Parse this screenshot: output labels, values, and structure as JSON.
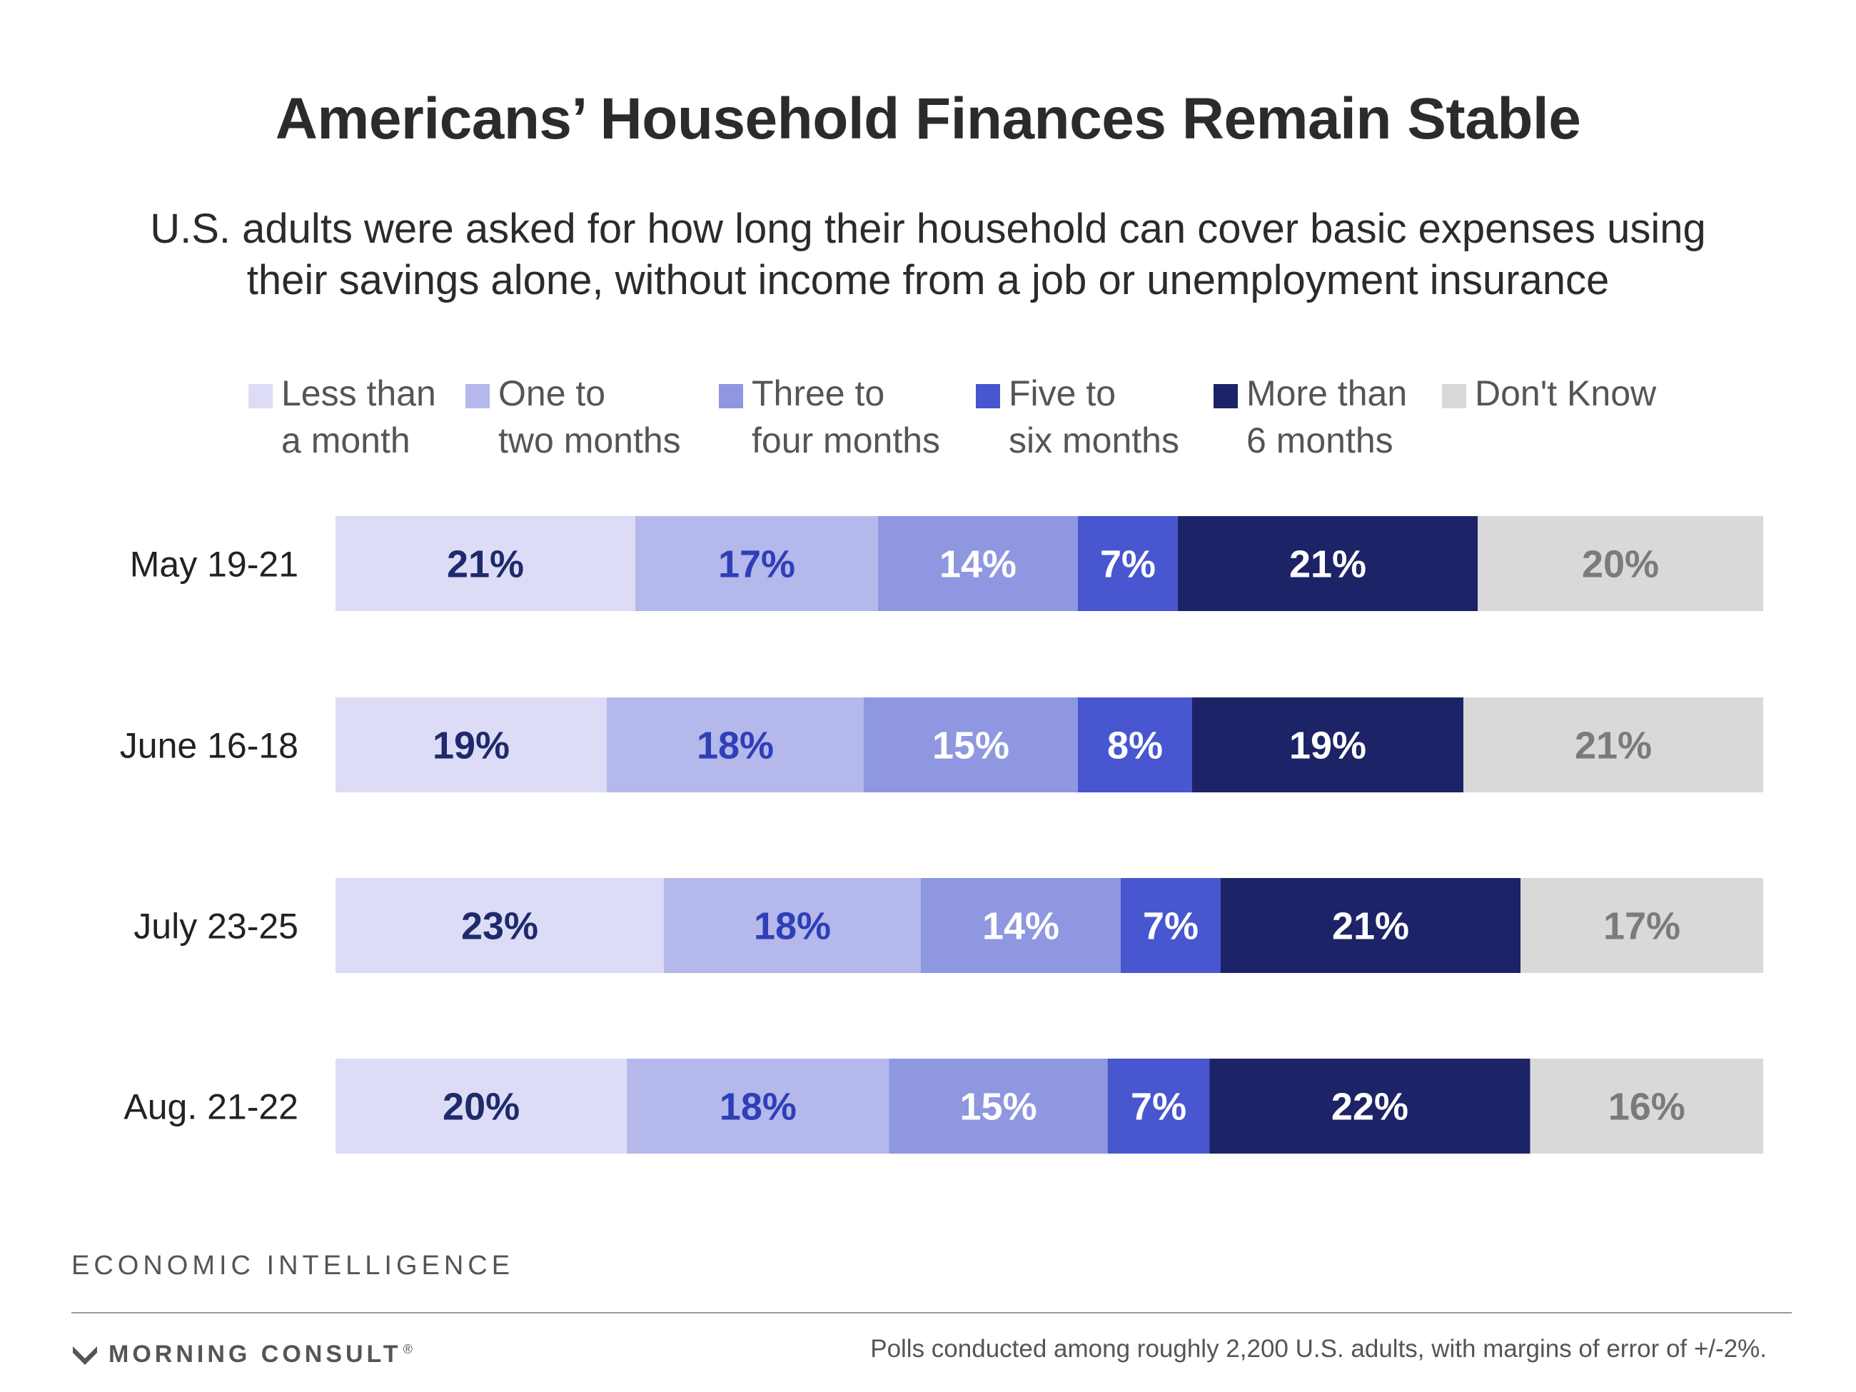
{
  "title": "Americans’ Household Finances Remain Stable",
  "subtitle": "U.S. adults were asked for how long their household can cover basic expenses using their savings alone, without income from a job or unemployment insurance",
  "footer": {
    "brand": "ECONOMIC INTELLIGENCE",
    "logo_text": "MORNING CONSULT",
    "logo_mark": "®",
    "note": "Polls conducted among roughly 2,200 U.S. adults, with margins of error of +/-2%."
  },
  "chart_data": {
    "type": "bar",
    "orientation": "horizontal",
    "stacked": true,
    "percent_scale": [
      0,
      100
    ],
    "legend_position": "top",
    "grid": false,
    "categories": [
      "May 19-21",
      "June 16-18",
      "July 23-25",
      "Aug. 21-22"
    ],
    "series": [
      {
        "name": "Less than\na month",
        "color": "#dcdcf6",
        "label_color": "#1f2a6b",
        "values": [
          21,
          19,
          23,
          20
        ]
      },
      {
        "name": "One to\ntwo months",
        "color": "#b4b8ea",
        "label_color": "#2e3fb8",
        "values": [
          17,
          18,
          18,
          18
        ]
      },
      {
        "name": "Three to\nfour months",
        "color": "#8e97e0",
        "label_color": "#ffffff",
        "values": [
          14,
          15,
          14,
          15
        ]
      },
      {
        "name": "Five to\nsix months",
        "color": "#4856d0",
        "label_color": "#ffffff",
        "values": [
          7,
          8,
          7,
          7
        ]
      },
      {
        "name": "More than\n6 months",
        "color": "#1c2367",
        "label_color": "#ffffff",
        "values": [
          21,
          19,
          21,
          22
        ]
      },
      {
        "name": "Don't Know",
        "color": "#d9d9d9",
        "label_color": "#7b7b7b",
        "values": [
          20,
          21,
          17,
          16
        ]
      }
    ]
  }
}
